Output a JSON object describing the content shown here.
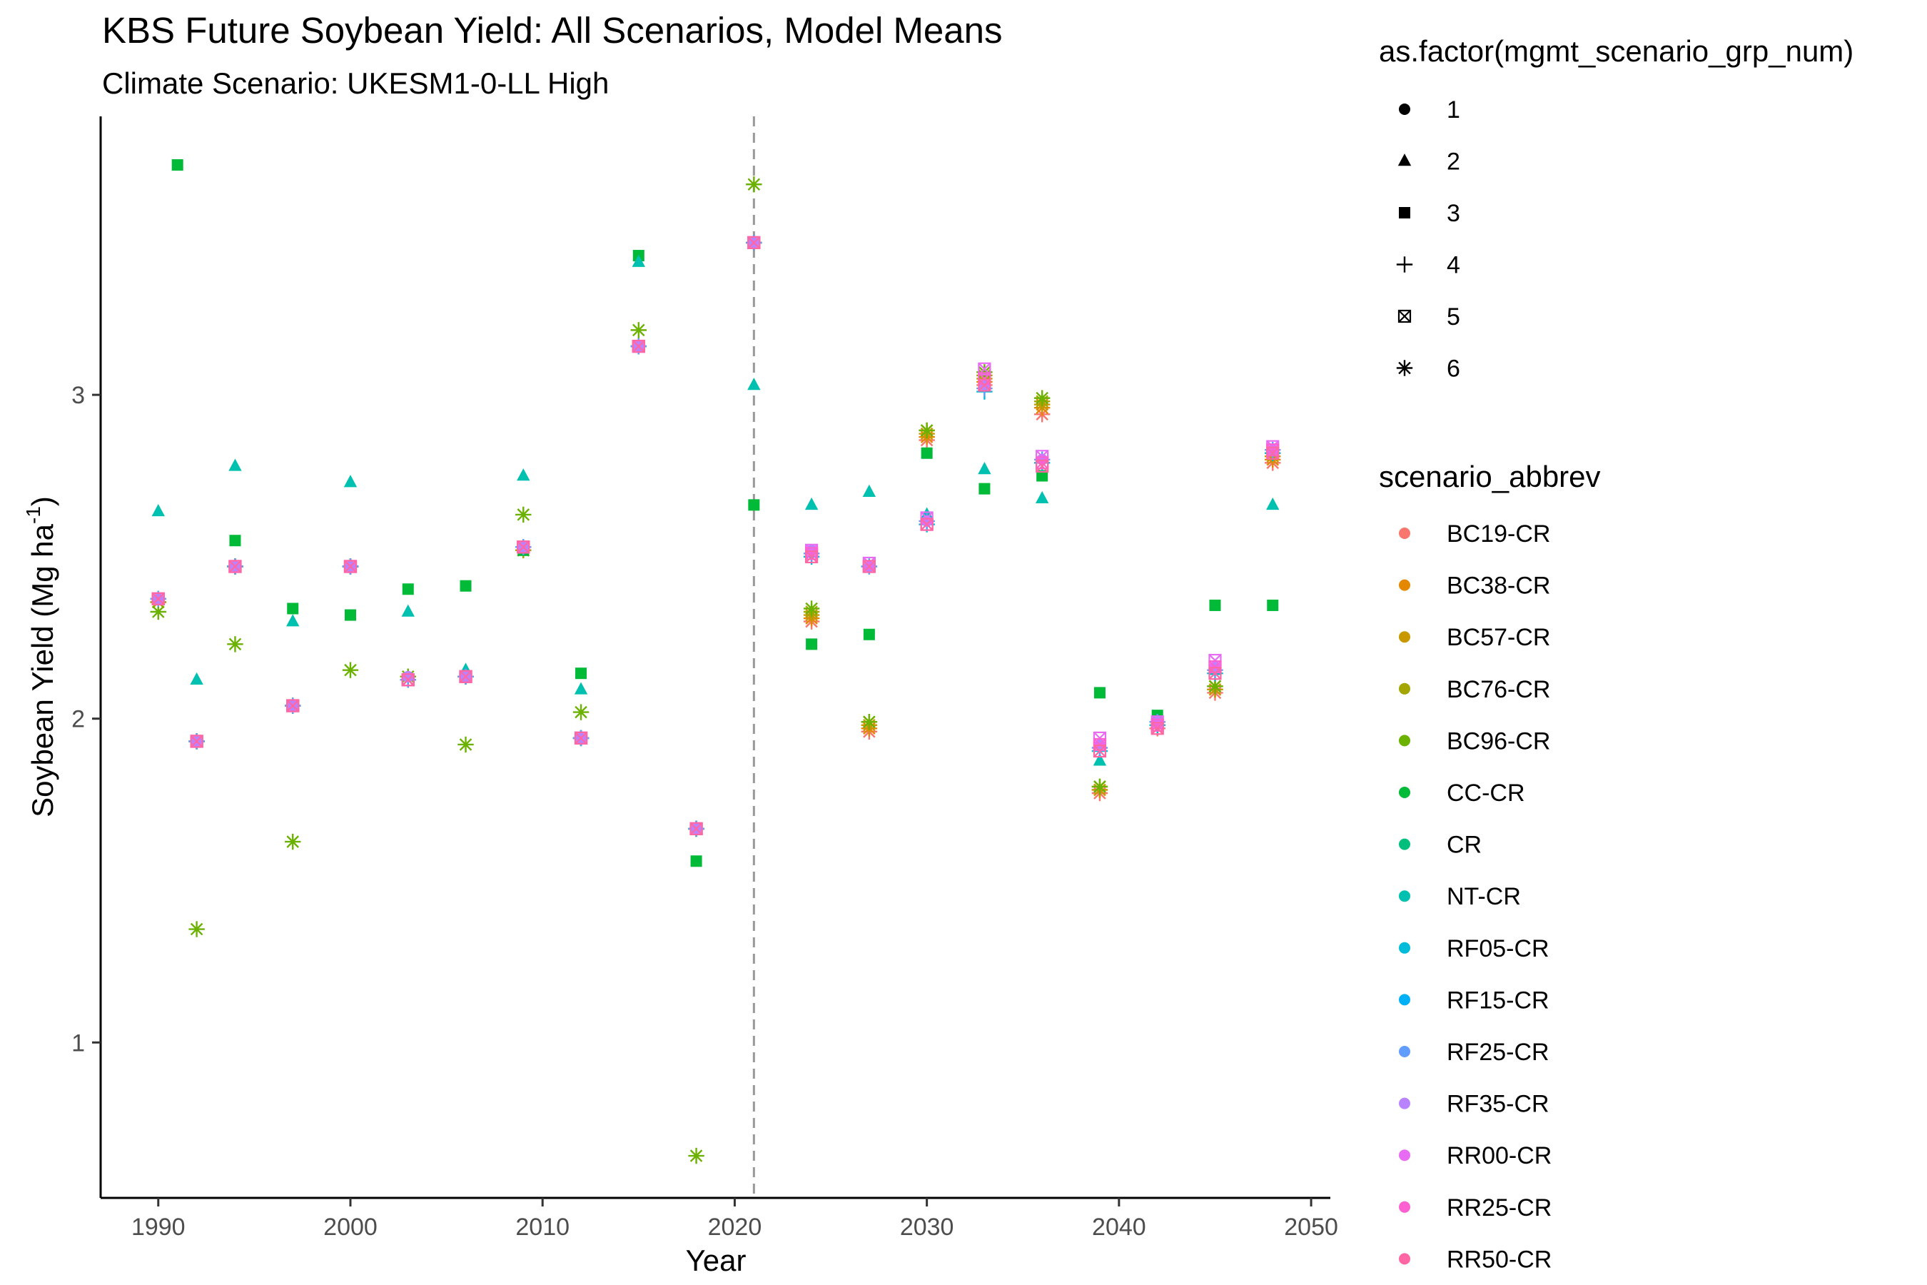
{
  "chart_data": {
    "type": "scatter",
    "title": "KBS Future Soybean Yield: All Scenarios, Model Means",
    "subtitle": "Climate Scenario: UKESM1-0-LL High",
    "xlabel": "Year",
    "ylabel": "Soybean Yield (Mg ha",
    "ylabel_superscript": "-1",
    "ylabel_suffix": ")",
    "xlim": [
      1987,
      2051
    ],
    "ylim": [
      0.52,
      3.86
    ],
    "x_ticks": [
      1990,
      2000,
      2010,
      2020,
      2030,
      2040,
      2050
    ],
    "y_ticks": [
      1,
      2,
      3
    ],
    "grid": false,
    "legend_position": "right",
    "vline": {
      "x": 2021,
      "style": "dashed",
      "color": "#999999"
    },
    "shape_legend": {
      "title": "as.factor(mgmt_scenario_grp_num)",
      "items": [
        {
          "label": "1",
          "shape": "circle"
        },
        {
          "label": "2",
          "shape": "triangle"
        },
        {
          "label": "3",
          "shape": "square"
        },
        {
          "label": "4",
          "shape": "plus"
        },
        {
          "label": "5",
          "shape": "boxx"
        },
        {
          "label": "6",
          "shape": "star"
        }
      ]
    },
    "color_legend": {
      "title": "scenario_abbrev",
      "items": [
        {
          "label": "BC19-CR",
          "color": "#F8766D"
        },
        {
          "label": "BC38-CR",
          "color": "#E58700"
        },
        {
          "label": "BC57-CR",
          "color": "#C99800"
        },
        {
          "label": "BC76-CR",
          "color": "#A3A500"
        },
        {
          "label": "BC96-CR",
          "color": "#6BB100"
        },
        {
          "label": "CC-CR",
          "color": "#00BA38"
        },
        {
          "label": "CR",
          "color": "#00BF7D"
        },
        {
          "label": "NT-CR",
          "color": "#00C0AF"
        },
        {
          "label": "RF05-CR",
          "color": "#00BCD8"
        },
        {
          "label": "RF15-CR",
          "color": "#00B0F6"
        },
        {
          "label": "RF25-CR",
          "color": "#619CFF"
        },
        {
          "label": "RF35-CR",
          "color": "#B983FF"
        },
        {
          "label": "RR00-CR",
          "color": "#E76BF3"
        },
        {
          "label": "RR25-CR",
          "color": "#FD61D1"
        },
        {
          "label": "RR50-CR",
          "color": "#FF67A4"
        }
      ]
    },
    "series": [
      {
        "name": "BC19-CR",
        "shape": "star",
        "color": "#F8766D",
        "x": [
          1990,
          1992,
          1994,
          1997,
          2000,
          2003,
          2006,
          2009,
          2012,
          2015,
          2018,
          2021,
          2024,
          2027,
          2030,
          2033,
          2036,
          2039,
          2042,
          2045,
          2048
        ],
        "y": [
          2.36,
          1.93,
          2.47,
          2.04,
          2.47,
          2.12,
          2.13,
          2.52,
          1.94,
          3.15,
          1.66,
          3.47,
          2.3,
          1.96,
          2.86,
          3.03,
          2.94,
          1.77,
          1.97,
          2.08,
          2.79
        ]
      },
      {
        "name": "BC38-CR",
        "shape": "star",
        "color": "#E58700",
        "x": [
          1990,
          1992,
          1994,
          1997,
          2000,
          2003,
          2006,
          2009,
          2012,
          2015,
          2018,
          2021,
          2024,
          2027,
          2030,
          2033,
          2036,
          2039,
          2042,
          2045,
          2048
        ],
        "y": [
          2.36,
          1.93,
          2.47,
          2.04,
          2.47,
          2.12,
          2.13,
          2.52,
          1.94,
          3.15,
          1.66,
          3.47,
          2.31,
          1.97,
          2.87,
          3.04,
          2.96,
          1.78,
          1.98,
          2.09,
          2.8
        ]
      },
      {
        "name": "BC57-CR",
        "shape": "star",
        "color": "#C99800",
        "x": [
          1990,
          1992,
          1994,
          1997,
          2000,
          2003,
          2006,
          2009,
          2012,
          2015,
          2018,
          2021,
          2024,
          2027,
          2030,
          2033,
          2036,
          2039,
          2042,
          2045,
          2048
        ],
        "y": [
          2.36,
          1.93,
          2.47,
          2.04,
          2.47,
          2.12,
          2.13,
          2.52,
          1.94,
          3.15,
          1.66,
          3.47,
          2.32,
          1.98,
          2.88,
          3.05,
          2.97,
          1.78,
          1.98,
          2.09,
          2.81
        ]
      },
      {
        "name": "BC76-CR",
        "shape": "star",
        "color": "#A3A500",
        "x": [
          1990,
          1992,
          1994,
          1997,
          2000,
          2003,
          2006,
          2009,
          2012,
          2015,
          2018,
          2021,
          2024,
          2027,
          2030,
          2033,
          2036,
          2039,
          2042,
          2045,
          2048
        ],
        "y": [
          2.36,
          1.93,
          2.47,
          2.04,
          2.47,
          2.12,
          2.13,
          2.52,
          1.94,
          3.15,
          1.66,
          3.47,
          2.33,
          1.99,
          2.89,
          3.06,
          2.98,
          1.79,
          1.99,
          2.1,
          2.82
        ]
      },
      {
        "name": "BC96-CR",
        "shape": "star",
        "color": "#6BB100",
        "x": [
          1990,
          1992,
          1994,
          1997,
          2000,
          2003,
          2006,
          2009,
          2012,
          2015,
          2018,
          2021,
          2024,
          2027,
          2030,
          2033,
          2036,
          2039,
          2042,
          2045,
          2048
        ],
        "y": [
          2.33,
          1.35,
          2.23,
          1.62,
          2.15,
          2.13,
          1.92,
          2.63,
          2.02,
          3.2,
          0.65,
          3.65,
          2.34,
          1.99,
          2.89,
          3.07,
          2.99,
          1.79,
          1.99,
          2.1,
          2.82
        ]
      },
      {
        "name": "CC-CR",
        "shape": "square",
        "color": "#00BA38",
        "x": [
          1991,
          1994,
          1997,
          2000,
          2003,
          2006,
          2009,
          2012,
          2015,
          2018,
          2021,
          2024,
          2027,
          2030,
          2033,
          2036,
          2039,
          2042,
          2045,
          2048
        ],
        "y": [
          3.71,
          2.55,
          2.34,
          2.32,
          2.4,
          2.41,
          2.52,
          2.14,
          3.43,
          1.56,
          2.66,
          2.23,
          2.26,
          2.82,
          2.71,
          2.75,
          2.08,
          2.01,
          2.35,
          2.35
        ]
      },
      {
        "name": "NT-CR",
        "shape": "triangle",
        "color": "#00C0AF",
        "x": [
          1990,
          1992,
          1994,
          1997,
          2000,
          2003,
          2006,
          2009,
          2012,
          2015,
          2021,
          2024,
          2027,
          2030,
          2033,
          2036,
          2039,
          2045,
          2048
        ],
        "y": [
          2.64,
          2.12,
          2.78,
          2.3,
          2.73,
          2.33,
          2.15,
          2.75,
          2.09,
          3.41,
          3.03,
          2.66,
          2.7,
          2.63,
          2.77,
          2.68,
          1.87,
          2.15,
          2.66
        ]
      },
      {
        "name": "RF05-CR",
        "shape": "plus",
        "color": "#00BCD8",
        "x": [
          1990,
          1992,
          1994,
          1997,
          2000,
          2003,
          2006,
          2009,
          2012,
          2015,
          2018,
          2021,
          2024,
          2027,
          2030,
          2033,
          2036,
          2039,
          2042,
          2045,
          2048
        ],
        "y": [
          2.37,
          1.93,
          2.47,
          2.04,
          2.47,
          2.12,
          2.13,
          2.53,
          1.94,
          3.15,
          1.66,
          3.47,
          2.5,
          2.47,
          2.6,
          3.01,
          2.79,
          1.9,
          1.98,
          2.14,
          2.82
        ]
      },
      {
        "name": "RF25-CR",
        "shape": "plus",
        "color": "#619CFF",
        "x": [
          1990,
          1992,
          1994,
          1997,
          2000,
          2003,
          2006,
          2009,
          2012,
          2015,
          2018,
          2021,
          2024,
          2027,
          2030,
          2033,
          2036,
          2039,
          2042,
          2045,
          2048
        ],
        "y": [
          2.37,
          1.93,
          2.47,
          2.04,
          2.47,
          2.12,
          2.13,
          2.53,
          1.94,
          3.15,
          1.66,
          3.47,
          2.51,
          2.47,
          2.61,
          3.02,
          2.8,
          1.91,
          1.99,
          2.15,
          2.83
        ]
      },
      {
        "name": "RF35-CR",
        "shape": "circle",
        "color": "#B983FF",
        "x": [
          1990,
          1992,
          1994,
          1997,
          2000,
          2003,
          2006,
          2009,
          2012,
          2015,
          2018,
          2021,
          2024,
          2027,
          2030,
          2033,
          2036,
          2039,
          2042,
          2045,
          2048
        ],
        "y": [
          2.37,
          1.93,
          2.47,
          2.04,
          2.47,
          2.13,
          2.13,
          2.53,
          1.94,
          3.15,
          1.66,
          3.47,
          2.52,
          2.47,
          2.61,
          3.03,
          2.8,
          1.92,
          1.99,
          2.16,
          2.83
        ]
      },
      {
        "name": "RR00-CR",
        "shape": "boxx",
        "color": "#E76BF3",
        "x": [
          1990,
          1992,
          1994,
          1997,
          2000,
          2003,
          2006,
          2009,
          2012,
          2015,
          2018,
          2021,
          2024,
          2027,
          2030,
          2033,
          2036,
          2039,
          2042,
          2045,
          2048
        ],
        "y": [
          2.37,
          1.93,
          2.47,
          2.04,
          2.47,
          2.12,
          2.13,
          2.53,
          1.94,
          3.15,
          1.66,
          3.47,
          2.52,
          2.48,
          2.62,
          3.08,
          2.81,
          1.94,
          1.99,
          2.18,
          2.84
        ]
      },
      {
        "name": "RR25-CR",
        "shape": "boxx",
        "color": "#FD61D1",
        "x": [
          1990,
          1992,
          1994,
          1997,
          2000,
          2003,
          2006,
          2009,
          2012,
          2015,
          2018,
          2021,
          2024,
          2027,
          2030,
          2033,
          2036,
          2039,
          2042,
          2045,
          2048
        ],
        "y": [
          2.37,
          1.93,
          2.47,
          2.04,
          2.47,
          2.12,
          2.13,
          2.53,
          1.94,
          3.15,
          1.66,
          3.47,
          2.51,
          2.47,
          2.6,
          3.05,
          2.79,
          1.92,
          1.98,
          2.16,
          2.83
        ]
      },
      {
        "name": "RR50-CR",
        "shape": "boxx",
        "color": "#FF67A4",
        "x": [
          1990,
          1992,
          1994,
          1997,
          2000,
          2003,
          2006,
          2009,
          2012,
          2015,
          2018,
          2021,
          2024,
          2027,
          2030,
          2033,
          2036,
          2039,
          2042,
          2045,
          2048
        ],
        "y": [
          2.37,
          1.93,
          2.47,
          2.04,
          2.47,
          2.12,
          2.13,
          2.53,
          1.94,
          3.15,
          1.66,
          3.47,
          2.5,
          2.47,
          2.6,
          3.03,
          2.78,
          1.9,
          1.97,
          2.14,
          2.82
        ]
      }
    ]
  }
}
